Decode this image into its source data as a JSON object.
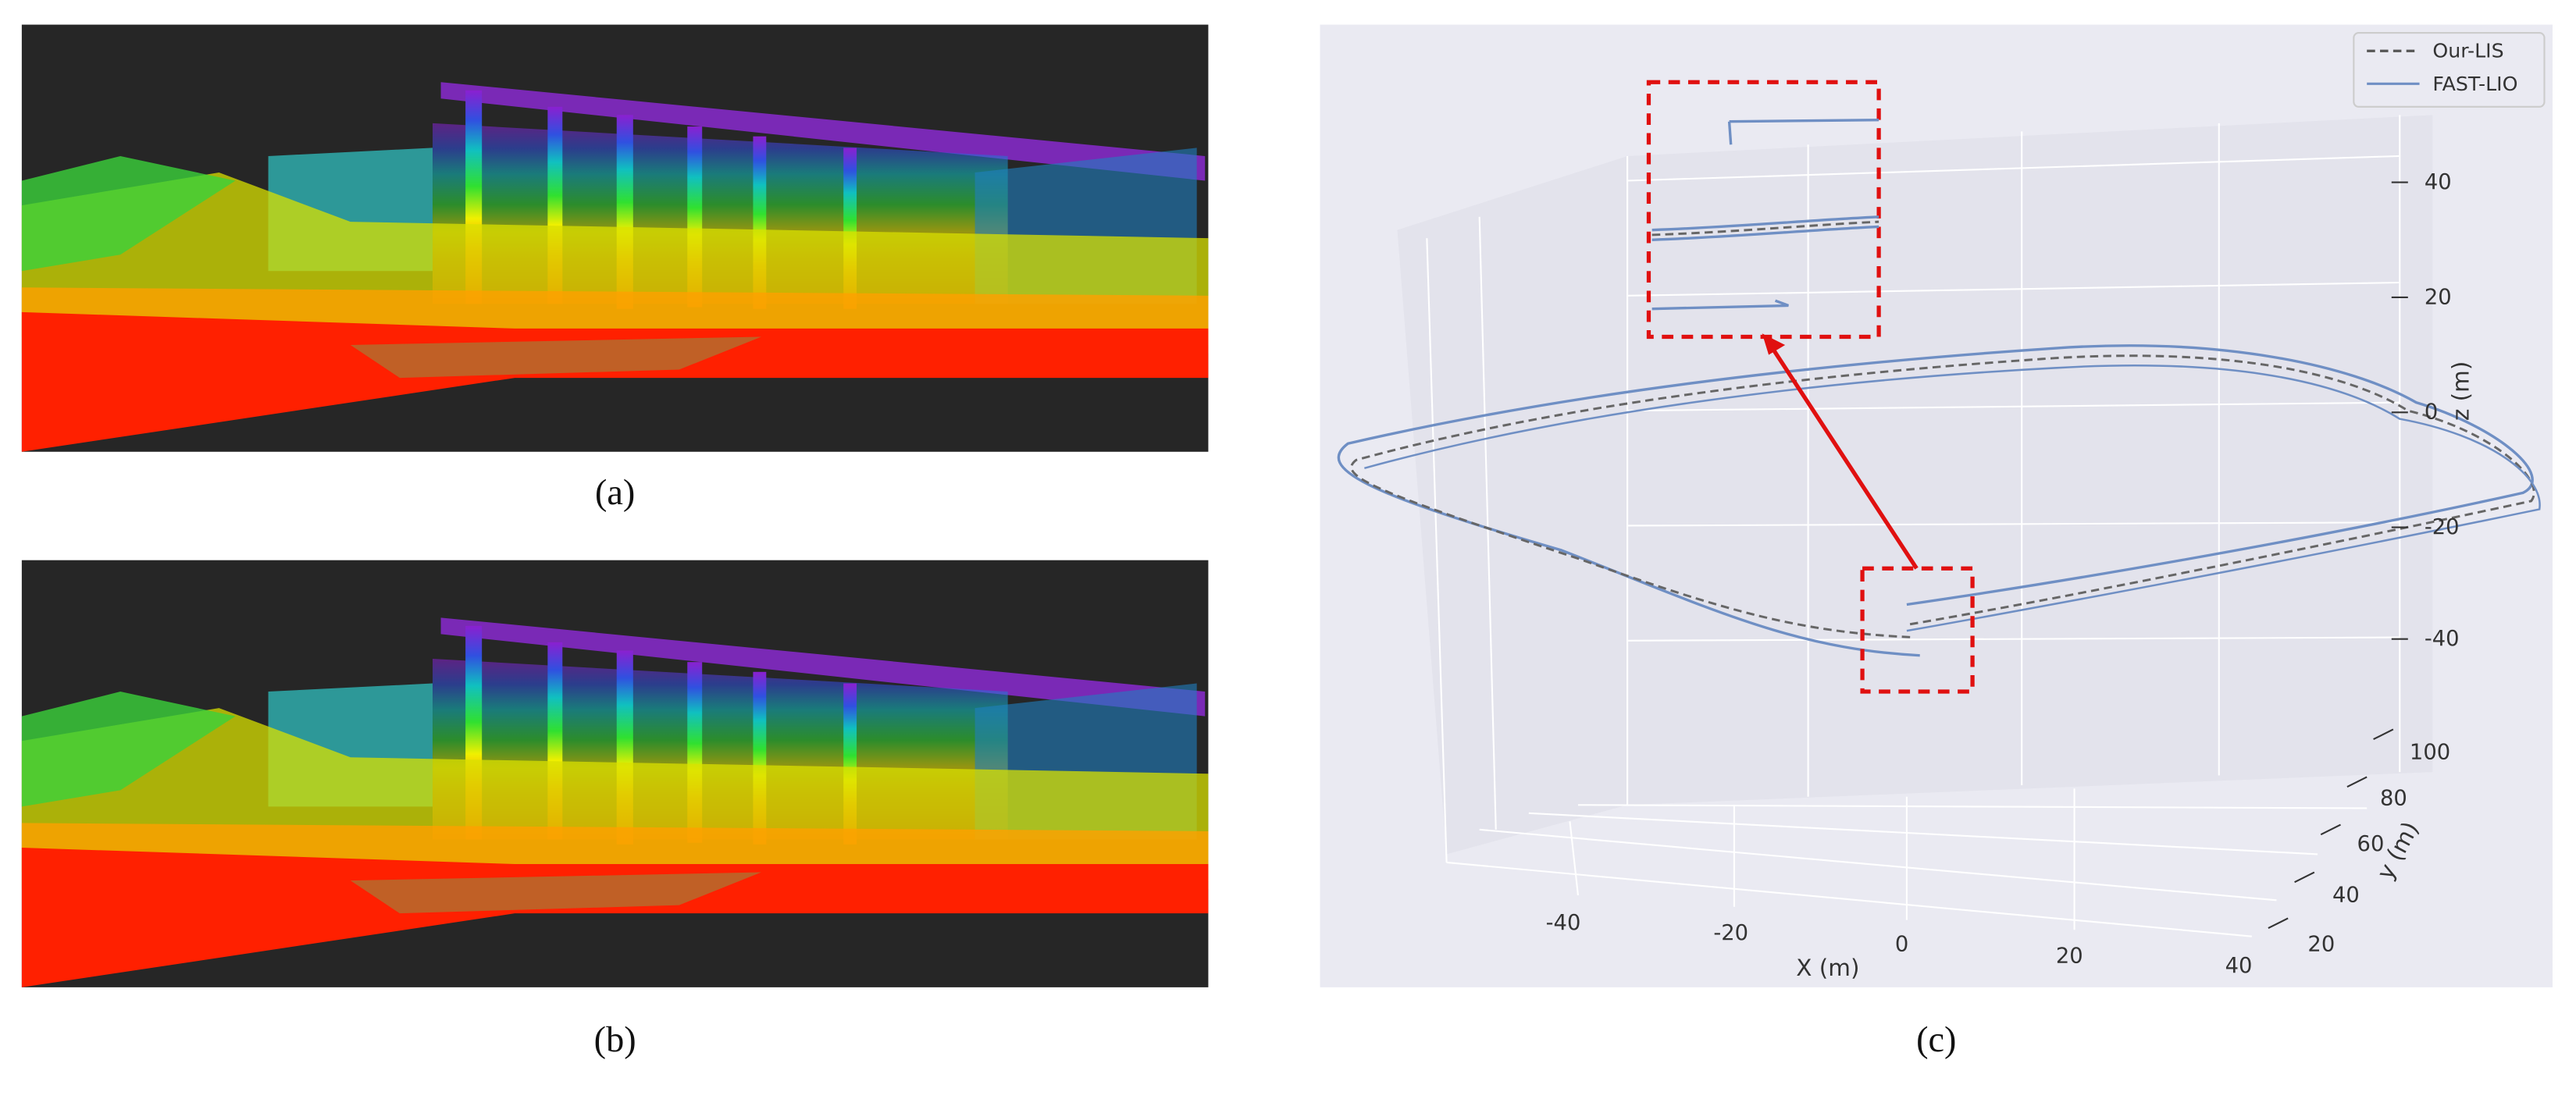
{
  "panels": [
    {
      "label": "(a)"
    },
    {
      "label": "(b)"
    },
    {
      "label": "(c)",
      "legend": [
        "Our-LIS",
        "FAST-LIO"
      ],
      "x_axis": {
        "label": "X (m)",
        "ticks": [
          -40,
          -20,
          0,
          20,
          40
        ]
      },
      "y_axis": {
        "label": "y (m)",
        "ticks": [
          20,
          40,
          60,
          80,
          100
        ]
      },
      "z_axis": {
        "label": "z (m)",
        "ticks": [
          40,
          20,
          0,
          -20,
          -40
        ]
      }
    }
  ]
}
